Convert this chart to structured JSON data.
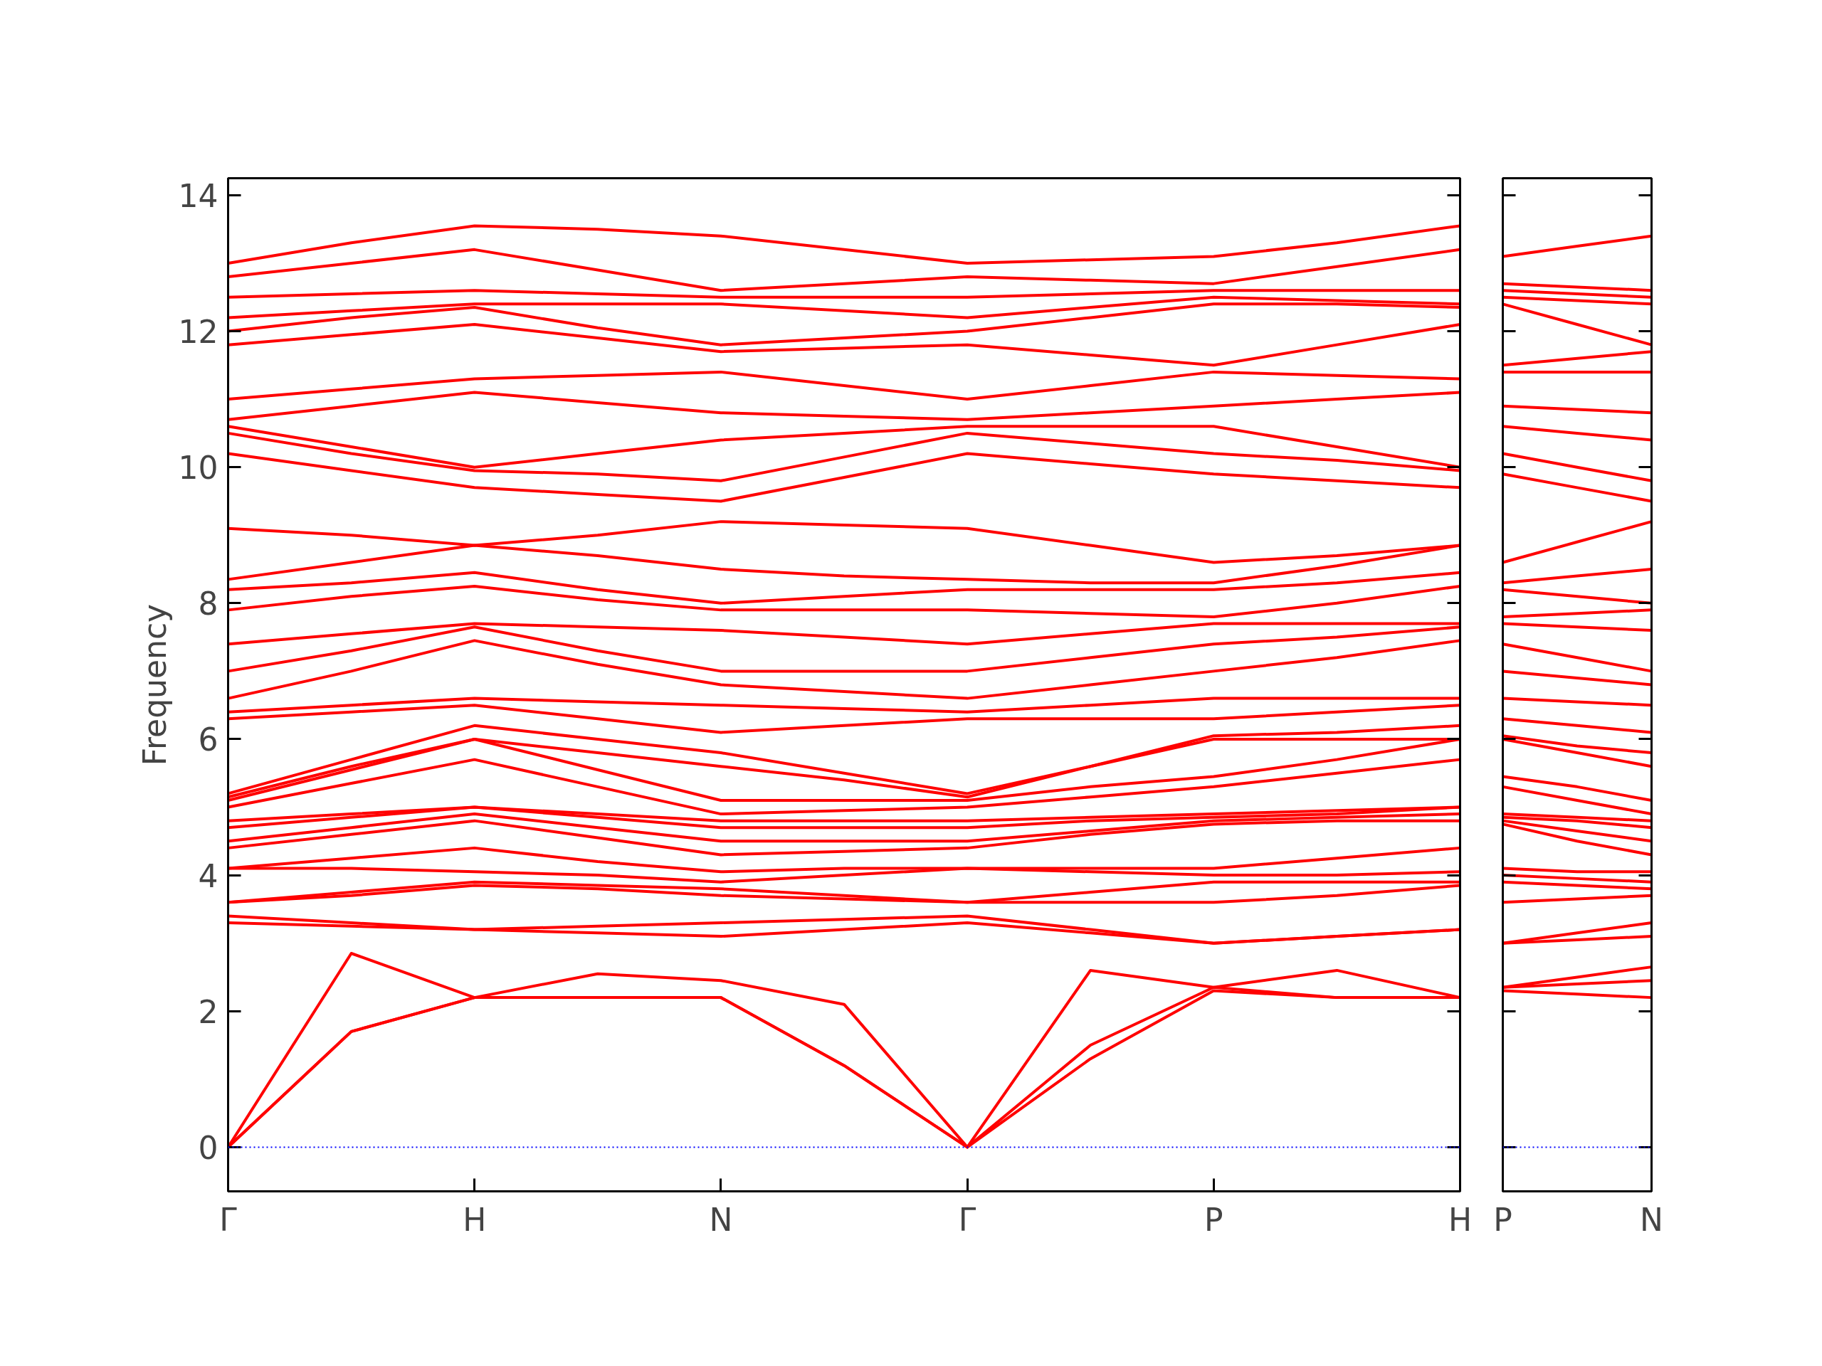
{
  "chart_data": [
    {
      "type": "line",
      "ylabel": "Frequency",
      "ylim": [
        -0.65,
        14.25
      ],
      "categories": [
        "Γ",
        null,
        "H",
        null,
        "N",
        null,
        "Γ",
        null,
        "P",
        null,
        "H"
      ],
      "yticks": [
        0,
        2,
        4,
        6,
        8,
        10,
        12,
        14
      ],
      "grid": false,
      "ref_lines": [
        {
          "axis": "y",
          "value": 0,
          "color": "#0000ff",
          "line_style": "dotted"
        }
      ],
      "series": [
        {
          "color": "#ff0000",
          "values": [
            0,
            1.7,
            2.2,
            2.2,
            2.2,
            1.2,
            0,
            1.3,
            2.3,
            2.2,
            2.2
          ]
        },
        {
          "color": "#ff0000",
          "values": [
            0,
            1.7,
            2.2,
            2.2,
            2.2,
            1.2,
            0,
            1.5,
            2.35,
            2.2,
            2.2
          ]
        },
        {
          "color": "#ff0000",
          "values": [
            0,
            2.85,
            2.2,
            2.55,
            2.45,
            2.1,
            0,
            2.6,
            2.35,
            2.6,
            2.2
          ]
        },
        {
          "color": "#ff0000",
          "values": [
            3.3,
            3.25,
            3.2,
            3.15,
            3.1,
            3.2,
            3.3,
            3.15,
            3.0,
            3.1,
            3.2
          ]
        },
        {
          "color": "#ff0000",
          "values": [
            3.4,
            3.3,
            3.2,
            3.25,
            3.3,
            3.35,
            3.4,
            3.2,
            3.0,
            3.1,
            3.2
          ]
        },
        {
          "color": "#ff0000",
          "values": [
            3.6,
            3.7,
            3.85,
            3.8,
            3.7,
            3.65,
            3.6,
            3.6,
            3.6,
            3.7,
            3.85
          ]
        },
        {
          "color": "#ff0000",
          "values": [
            3.6,
            3.75,
            3.9,
            3.85,
            3.8,
            3.7,
            3.6,
            3.75,
            3.9,
            3.9,
            3.9
          ]
        },
        {
          "color": "#ff0000",
          "values": [
            4.1,
            4.1,
            4.05,
            4.0,
            3.9,
            4.0,
            4.1,
            4.05,
            4.0,
            4.0,
            4.05
          ]
        },
        {
          "color": "#ff0000",
          "values": [
            4.1,
            4.25,
            4.4,
            4.2,
            4.05,
            4.1,
            4.1,
            4.1,
            4.1,
            4.25,
            4.4
          ]
        },
        {
          "color": "#ff0000",
          "values": [
            4.4,
            4.6,
            4.8,
            4.55,
            4.3,
            4.35,
            4.4,
            4.6,
            4.75,
            4.8,
            4.8
          ]
        },
        {
          "color": "#ff0000",
          "values": [
            4.5,
            4.7,
            4.9,
            4.7,
            4.5,
            4.5,
            4.5,
            4.65,
            4.8,
            4.85,
            4.9
          ]
        },
        {
          "color": "#ff0000",
          "values": [
            4.7,
            4.85,
            5.0,
            4.85,
            4.7,
            4.7,
            4.7,
            4.8,
            4.85,
            4.9,
            5.0
          ]
        },
        {
          "color": "#ff0000",
          "values": [
            4.8,
            4.9,
            5.0,
            4.9,
            4.8,
            4.8,
            4.8,
            4.85,
            4.9,
            4.95,
            5.0
          ]
        },
        {
          "color": "#ff0000",
          "values": [
            5.0,
            5.35,
            5.7,
            5.3,
            4.9,
            4.95,
            5.0,
            5.15,
            5.3,
            5.5,
            5.7
          ]
        },
        {
          "color": "#ff0000",
          "values": [
            5.1,
            5.55,
            6.0,
            5.55,
            5.1,
            5.1,
            5.1,
            5.3,
            5.45,
            5.7,
            6.0
          ]
        },
        {
          "color": "#ff0000",
          "values": [
            5.15,
            5.6,
            6.0,
            5.8,
            5.6,
            5.4,
            5.15,
            5.6,
            6.0,
            6.0,
            6.0
          ]
        },
        {
          "color": "#ff0000",
          "values": [
            5.2,
            5.7,
            6.2,
            6.0,
            5.8,
            5.5,
            5.2,
            5.6,
            6.05,
            6.1,
            6.2
          ]
        },
        {
          "color": "#ff0000",
          "values": [
            6.3,
            6.4,
            6.5,
            6.3,
            6.1,
            6.2,
            6.3,
            6.3,
            6.3,
            6.4,
            6.5
          ]
        },
        {
          "color": "#ff0000",
          "values": [
            6.4,
            6.5,
            6.6,
            6.55,
            6.5,
            6.45,
            6.4,
            6.5,
            6.6,
            6.6,
            6.6
          ]
        },
        {
          "color": "#ff0000",
          "values": [
            6.6,
            7.0,
            7.45,
            7.1,
            6.8,
            6.7,
            6.6,
            6.8,
            7.0,
            7.2,
            7.45
          ]
        },
        {
          "color": "#ff0000",
          "values": [
            7.0,
            7.3,
            7.65,
            7.3,
            7.0,
            7.0,
            7.0,
            7.2,
            7.4,
            7.5,
            7.65
          ]
        },
        {
          "color": "#ff0000",
          "values": [
            7.4,
            7.55,
            7.7,
            7.65,
            7.6,
            7.5,
            7.4,
            7.55,
            7.7,
            7.7,
            7.7
          ]
        },
        {
          "color": "#ff0000",
          "values": [
            7.9,
            8.1,
            8.25,
            8.05,
            7.9,
            7.9,
            7.9,
            7.85,
            7.8,
            8.0,
            8.25
          ]
        },
        {
          "color": "#ff0000",
          "values": [
            8.2,
            8.3,
            8.45,
            8.2,
            8.0,
            8.1,
            8.2,
            8.2,
            8.2,
            8.3,
            8.45
          ]
        },
        {
          "color": "#ff0000",
          "values": [
            8.35,
            8.6,
            8.85,
            8.7,
            8.5,
            8.4,
            8.35,
            8.3,
            8.3,
            8.55,
            8.85
          ]
        },
        {
          "color": "#ff0000",
          "values": [
            9.1,
            9.0,
            8.85,
            9.0,
            9.2,
            9.15,
            9.1,
            8.85,
            8.6,
            8.7,
            8.85
          ]
        },
        {
          "color": "#ff0000",
          "values": [
            10.2,
            9.95,
            9.7,
            9.6,
            9.5,
            9.85,
            10.2,
            10.05,
            9.9,
            9.8,
            9.7
          ]
        },
        {
          "color": "#ff0000",
          "values": [
            10.5,
            10.2,
            9.95,
            9.9,
            9.8,
            10.15,
            10.5,
            10.35,
            10.2,
            10.1,
            9.95
          ]
        },
        {
          "color": "#ff0000",
          "values": [
            10.6,
            10.3,
            10.0,
            10.2,
            10.4,
            10.5,
            10.6,
            10.6,
            10.6,
            10.3,
            10.0
          ]
        },
        {
          "color": "#ff0000",
          "values": [
            10.7,
            10.9,
            11.1,
            10.95,
            10.8,
            10.75,
            10.7,
            10.8,
            10.9,
            11.0,
            11.1
          ]
        },
        {
          "color": "#ff0000",
          "values": [
            11.0,
            11.15,
            11.3,
            11.35,
            11.4,
            11.2,
            11.0,
            11.2,
            11.4,
            11.35,
            11.3
          ]
        },
        {
          "color": "#ff0000",
          "values": [
            11.8,
            11.95,
            12.1,
            11.9,
            11.7,
            11.75,
            11.8,
            11.65,
            11.5,
            11.8,
            12.1
          ]
        },
        {
          "color": "#ff0000",
          "values": [
            12.0,
            12.2,
            12.35,
            12.05,
            11.8,
            11.9,
            12.0,
            12.2,
            12.4,
            12.4,
            12.35
          ]
        },
        {
          "color": "#ff0000",
          "values": [
            12.2,
            12.3,
            12.4,
            12.4,
            12.4,
            12.3,
            12.2,
            12.35,
            12.5,
            12.45,
            12.4
          ]
        },
        {
          "color": "#ff0000",
          "values": [
            12.5,
            12.55,
            12.6,
            12.55,
            12.5,
            12.5,
            12.5,
            12.55,
            12.6,
            12.6,
            12.6
          ]
        },
        {
          "color": "#ff0000",
          "values": [
            12.8,
            13.0,
            13.2,
            12.9,
            12.6,
            12.7,
            12.8,
            12.75,
            12.7,
            12.95,
            13.2
          ]
        },
        {
          "color": "#ff0000",
          "values": [
            13.0,
            13.3,
            13.55,
            13.5,
            13.4,
            13.2,
            13.0,
            13.05,
            13.1,
            13.3,
            13.55
          ]
        }
      ]
    },
    {
      "type": "line",
      "ylim": [
        -0.65,
        14.25
      ],
      "categories": [
        "P",
        null,
        "N"
      ],
      "yticks": [
        0,
        2,
        4,
        6,
        8,
        10,
        12,
        14
      ],
      "grid": false,
      "tick_labels": "x",
      "ref_lines": [
        {
          "axis": "y",
          "value": 0,
          "color": "#0000ff",
          "line_style": "dotted"
        }
      ],
      "series": [
        {
          "color": "#ff0000",
          "values": [
            2.3,
            2.25,
            2.2
          ]
        },
        {
          "color": "#ff0000",
          "values": [
            2.35,
            2.4,
            2.45
          ]
        },
        {
          "color": "#ff0000",
          "values": [
            2.35,
            2.5,
            2.65
          ]
        },
        {
          "color": "#ff0000",
          "values": [
            3.0,
            3.05,
            3.1
          ]
        },
        {
          "color": "#ff0000",
          "values": [
            3.0,
            3.15,
            3.3
          ]
        },
        {
          "color": "#ff0000",
          "values": [
            3.6,
            3.65,
            3.7
          ]
        },
        {
          "color": "#ff0000",
          "values": [
            3.9,
            3.85,
            3.8
          ]
        },
        {
          "color": "#ff0000",
          "values": [
            4.0,
            3.95,
            3.9
          ]
        },
        {
          "color": "#ff0000",
          "values": [
            4.1,
            4.05,
            4.05
          ]
        },
        {
          "color": "#ff0000",
          "values": [
            4.75,
            4.5,
            4.3
          ]
        },
        {
          "color": "#ff0000",
          "values": [
            4.8,
            4.65,
            4.5
          ]
        },
        {
          "color": "#ff0000",
          "values": [
            4.85,
            4.8,
            4.7
          ]
        },
        {
          "color": "#ff0000",
          "values": [
            4.9,
            4.85,
            4.8
          ]
        },
        {
          "color": "#ff0000",
          "values": [
            5.3,
            5.1,
            4.9
          ]
        },
        {
          "color": "#ff0000",
          "values": [
            5.45,
            5.3,
            5.1
          ]
        },
        {
          "color": "#ff0000",
          "values": [
            6.0,
            5.8,
            5.6
          ]
        },
        {
          "color": "#ff0000",
          "values": [
            6.05,
            5.9,
            5.8
          ]
        },
        {
          "color": "#ff0000",
          "values": [
            6.3,
            6.2,
            6.1
          ]
        },
        {
          "color": "#ff0000",
          "values": [
            6.6,
            6.55,
            6.5
          ]
        },
        {
          "color": "#ff0000",
          "values": [
            7.0,
            6.9,
            6.8
          ]
        },
        {
          "color": "#ff0000",
          "values": [
            7.4,
            7.2,
            7.0
          ]
        },
        {
          "color": "#ff0000",
          "values": [
            7.7,
            7.65,
            7.6
          ]
        },
        {
          "color": "#ff0000",
          "values": [
            7.8,
            7.85,
            7.9
          ]
        },
        {
          "color": "#ff0000",
          "values": [
            8.2,
            8.1,
            8.0
          ]
        },
        {
          "color": "#ff0000",
          "values": [
            8.3,
            8.4,
            8.5
          ]
        },
        {
          "color": "#ff0000",
          "values": [
            8.6,
            8.9,
            9.2
          ]
        },
        {
          "color": "#ff0000",
          "values": [
            9.9,
            9.7,
            9.5
          ]
        },
        {
          "color": "#ff0000",
          "values": [
            10.2,
            10.0,
            9.8
          ]
        },
        {
          "color": "#ff0000",
          "values": [
            10.6,
            10.5,
            10.4
          ]
        },
        {
          "color": "#ff0000",
          "values": [
            10.9,
            10.85,
            10.8
          ]
        },
        {
          "color": "#ff0000",
          "values": [
            11.4,
            11.4,
            11.4
          ]
        },
        {
          "color": "#ff0000",
          "values": [
            11.5,
            11.6,
            11.7
          ]
        },
        {
          "color": "#ff0000",
          "values": [
            12.4,
            12.1,
            11.8
          ]
        },
        {
          "color": "#ff0000",
          "values": [
            12.5,
            12.45,
            12.4
          ]
        },
        {
          "color": "#ff0000",
          "values": [
            12.6,
            12.55,
            12.5
          ]
        },
        {
          "color": "#ff0000",
          "values": [
            12.7,
            12.65,
            12.6
          ]
        },
        {
          "color": "#ff0000",
          "values": [
            13.1,
            13.25,
            13.4
          ]
        }
      ]
    }
  ]
}
